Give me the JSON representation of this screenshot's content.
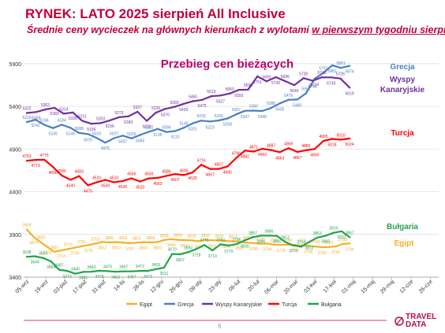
{
  "header": {
    "title": "RYNEK: LATO 2025 sierpień All Inclusive",
    "subtitle_lead": "Średnie ceny wycieczek na głównych kierunkach z wylotami ",
    "subtitle_underlined": "w pierwszym tygodniu sierpnia"
  },
  "footer": {
    "page_number": "6",
    "logo_top": "TRAVEL",
    "logo_bottom": "DATA"
  },
  "chart_data": {
    "type": "line",
    "title": "Przebieg cen bieżących",
    "xlabel": "",
    "ylabel": "",
    "ylim": [
      3400,
      6000
    ],
    "yticks": [
      3400,
      3900,
      4400,
      4900,
      5400,
      5900
    ],
    "grid": "horizontal",
    "legend_position": "bottom",
    "x_ticks": [
      "05-wrz",
      "19-wrz",
      "03-paź",
      "17-paź",
      "31-paź",
      "14-lis",
      "28-lis",
      "12-gru",
      "26-gru",
      "09-sty",
      "23-sty",
      "06-lut",
      "20-lut",
      "06-mar",
      "20-mar",
      "03-kwi",
      "17-kwi",
      "01-maj",
      "15-maj",
      "29-maj",
      "12-cze",
      "26-cze"
    ],
    "series": [
      {
        "name": "Egipt",
        "color": "#f5b026",
        "side_label": "Egipt",
        "values": [
          3958,
          3870,
          3809,
          3753,
          3697,
          3713,
          3729,
          3745,
          3761,
          3776,
          3792,
          3812,
          3806,
          3810,
          3805,
          3797,
          3803,
          3810,
          3806,
          3810,
          3835,
          3844,
          3836,
          3833,
          3830,
          3820,
          3835,
          3831,
          3830,
          3823,
          3818,
          3812,
          3805,
          3798,
          3790,
          3794,
          3780,
          3778,
          3780,
          3776,
          3772,
          3766,
          3758,
          3750,
          3752,
          3760,
          3788,
          3794
        ]
      },
      {
        "name": "Grecja",
        "color": "#4a7fc1",
        "side_label": "Grecja",
        "values": [
          5216,
          5242,
          5184,
          5145,
          5184,
          5149,
          5088,
          5075,
          5029,
          4975,
          5027,
          5057,
          5025,
          5065,
          5102,
          5135,
          5099,
          5110,
          5149,
          5201,
          5233,
          5223,
          5235,
          5258,
          5307,
          5347,
          5350,
          5345,
          5380,
          5435,
          5476,
          5480,
          5552,
          5724,
          5791,
          5881,
          5851,
          5874
        ]
      },
      {
        "name": "Wyspy Kanaryjskie",
        "color": "#7030a0",
        "side_label": "Wyspy Kanaryjskie",
        "values": [
          5322,
          5333,
          5363,
          5383,
          5314,
          5328,
          5231,
          5196,
          5203,
          5236,
          5273,
          5283,
          5337,
          5230,
          5326,
          5370,
          5393,
          5429,
          5460,
          5475,
          5519,
          5527,
          5550,
          5593,
          5595,
          5751,
          5693,
          5742,
          5696,
          5649,
          5730,
          5700,
          5740,
          5739,
          5726,
          5619
        ]
      },
      {
        "name": "Turcja",
        "color": "#ff0000",
        "side_label": "Turcja",
        "values": [
          4763,
          4773,
          4775,
          4690,
          4590,
          4540,
          4583,
          4475,
          4510,
          4539,
          4510,
          4526,
          4556,
          4520,
          4556,
          4563,
          4586,
          4607,
          4595,
          4625,
          4716,
          4667,
          4667,
          4695,
          4796,
          4882,
          4871,
          4903,
          4887,
          4863,
          4909,
          4867,
          4885,
          4900,
          4995,
          5018,
          5010,
          5024
        ]
      },
      {
        "name": "Bułgaria",
        "color": "#22a34b",
        "side_label": "Bułgaria",
        "values": [
          3638,
          3644,
          3624,
          3584,
          3487,
          3473,
          3440,
          3461,
          3463,
          3475,
          3470,
          3463,
          3467,
          3467,
          3473,
          3473,
          3493,
          3511,
          3670,
          3667,
          3692,
          3728,
          3776,
          3713,
          3784,
          3770,
          3786,
          3830,
          3867,
          3886,
          3886,
          3882,
          3812,
          3772,
          3756,
          3812,
          3863,
          3883,
          3919,
          3937,
          3867
        ]
      }
    ]
  }
}
